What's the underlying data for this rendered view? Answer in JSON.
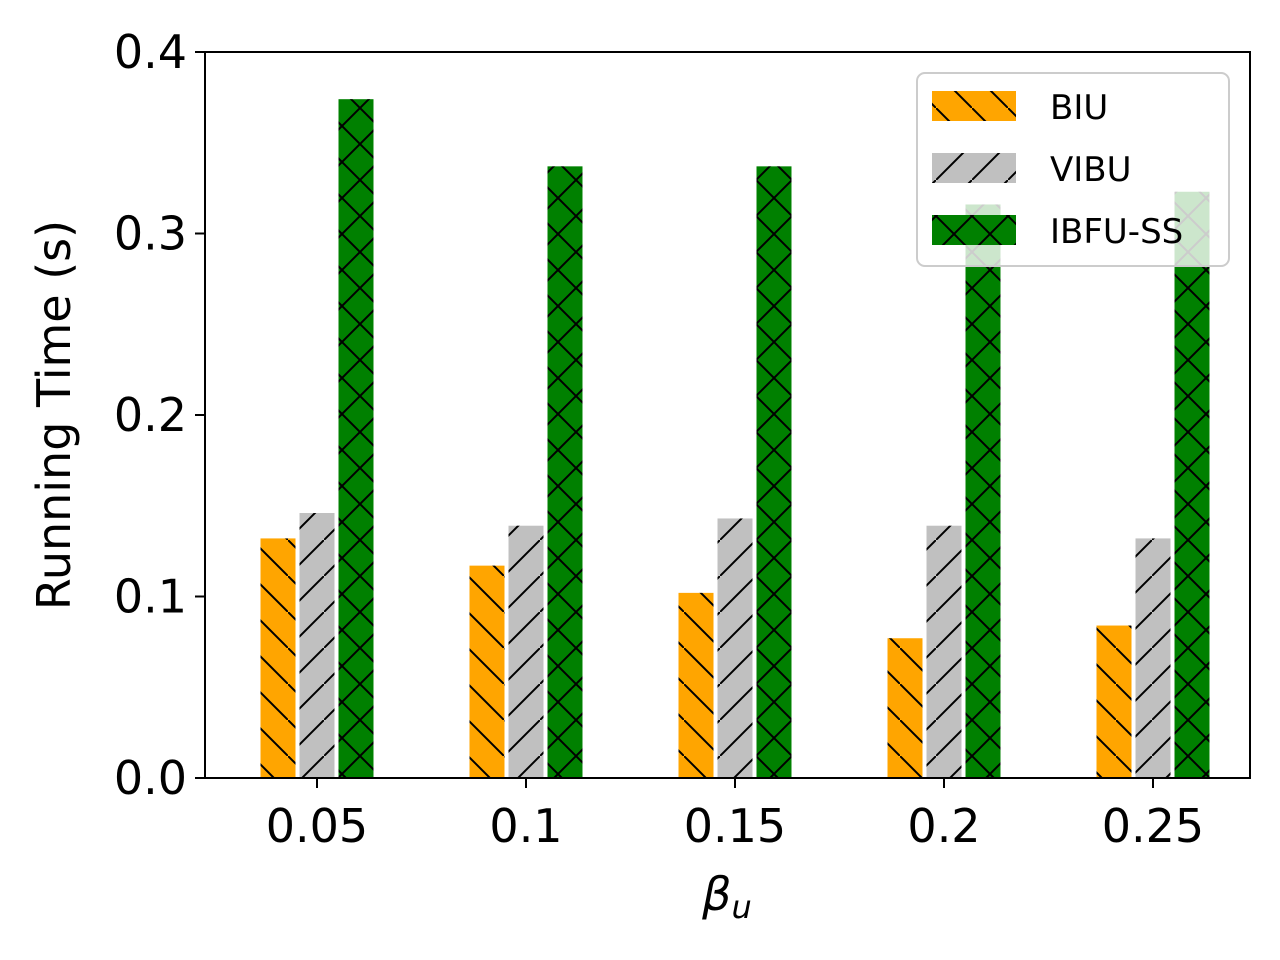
{
  "chart_data": {
    "type": "bar",
    "xlabel": "β_u",
    "xlabel_base": "β",
    "xlabel_sub": "u",
    "ylabel": "Running Time (s)",
    "categories": [
      "0.05",
      "0.1",
      "0.15",
      "0.2",
      "0.25"
    ],
    "ylim": [
      0,
      0.4
    ],
    "yticks": [
      "0.0",
      "0.1",
      "0.2",
      "0.3",
      "0.4"
    ],
    "grid": false,
    "legend_position": "top-right",
    "series": [
      {
        "name": "BIU",
        "color": "#ffa500",
        "hatch": "backslash",
        "values": [
          0.132,
          0.117,
          0.102,
          0.077,
          0.084
        ]
      },
      {
        "name": "VIBU",
        "color": "#c0c0c0",
        "hatch": "slash",
        "values": [
          0.146,
          0.139,
          0.143,
          0.139,
          0.132
        ]
      },
      {
        "name": "IBFU-SS",
        "color": "#008000",
        "hatch": "cross",
        "values": [
          0.374,
          0.337,
          0.337,
          0.316,
          0.323
        ]
      }
    ]
  }
}
